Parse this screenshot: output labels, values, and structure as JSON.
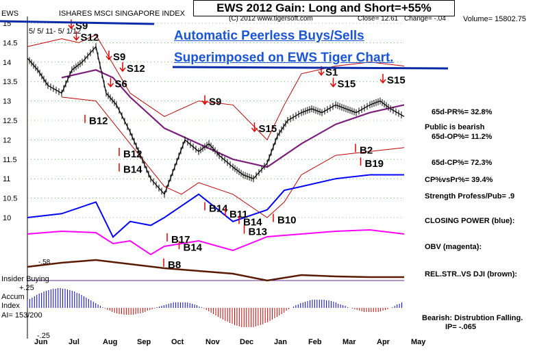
{
  "header": {
    "ticker": "EWS",
    "index_name": "ISHARES MSCI SINGAPORE INDEX",
    "title": "EWS 2012 Gain: Long and Short=+55%",
    "source": "(C) 2012 www.tigersoft.com",
    "close": "Close= 12.61",
    "change": "Change= -.04",
    "volume": "Volume= 15802.75",
    "date_range": "5/ 5/ 11- 5/ 1/12"
  },
  "banner": {
    "line1": "Automatic Peerless Buys/Sells",
    "line2": "Superimposed on EWS Tiger Chart."
  },
  "right_panel": {
    "pr": "65d-PR%= 32.8%",
    "sentiment": "Public is bearish",
    "op": "65d-OP%= 11.2%",
    "cp": "65d-CP%= 72.3%",
    "cpvspr": "CP%vsPr%=  39.4%",
    "strength": "Strength Profess/Pub= .9",
    "closing_power": "CLOSING POWER (blue):",
    "obv": "OBV (magenta):",
    "relstr": "REL.STR..VS DJI (brown):",
    "bearish": "Bearish: Distrubtion Falling.",
    "ip": "IP= -.065"
  },
  "accum_panel": {
    "insider": "Insider Buying",
    "plus": "+.25",
    "accum": "Accum",
    "index": "Index",
    "ai": "AI= 153/200",
    "minus": "-.25",
    "relstr_mark": "-.58"
  },
  "colors": {
    "price": "#000000",
    "bands": "#c00000",
    "ma": "#7a1f7a",
    "closing_power": "#0000ff",
    "obv": "#ff00ff",
    "relstr": "#5a1a00",
    "accum_pos": "#0000cc",
    "accum_neg": "#cc0000",
    "signal_text": "#000000",
    "arrows": "#e00000"
  },
  "chart_data": {
    "type": "line",
    "title": "EWS 2012 Gain: Long and Short=+55%",
    "xlabel": "",
    "ylabel": "",
    "ylim": [
      9.5,
      15
    ],
    "yticks": [
      10,
      10.5,
      11,
      11.5,
      12,
      12.5,
      13,
      13.5,
      14,
      14.5,
      15
    ],
    "xticks": [
      "Jun",
      "Jul",
      "Aug",
      "Sep",
      "Oct",
      "Nov",
      "Dec",
      "Jan",
      "Feb",
      "Mar",
      "Apr",
      "May"
    ],
    "series": [
      {
        "name": "price",
        "x": [
          0,
          0.3,
          0.6,
          1,
          1.3,
          1.6,
          2,
          2.3,
          2.6,
          3,
          3.3,
          3.6,
          4,
          4.3,
          4.6,
          5,
          5.3,
          5.6,
          6,
          6.3,
          6.6,
          7,
          7.3,
          7.6,
          8,
          8.3,
          8.6,
          9,
          9.3,
          9.6,
          10,
          10.3,
          10.6,
          11
        ],
        "values": [
          14.1,
          13.8,
          13.4,
          13.2,
          13.8,
          14.0,
          14.4,
          13.2,
          12.9,
          12.2,
          11.6,
          11.0,
          10.6,
          11.3,
          12.0,
          11.7,
          11.9,
          11.6,
          11.3,
          11.1,
          11.0,
          11.4,
          12.1,
          12.5,
          12.7,
          12.8,
          12.7,
          12.9,
          12.8,
          12.7,
          12.9,
          13.0,
          12.8,
          12.6
        ]
      },
      {
        "name": "moving average",
        "x": [
          1,
          2,
          2.5,
          3,
          4,
          5,
          6,
          7,
          8,
          9,
          10,
          11
        ],
        "values": [
          13.6,
          13.8,
          13.6,
          13.1,
          12.3,
          11.9,
          11.5,
          11.3,
          11.9,
          12.4,
          12.7,
          12.9
        ]
      },
      {
        "name": "upper band",
        "x": [
          0,
          1,
          1.5,
          2,
          2.6,
          3,
          4,
          5,
          6,
          7,
          7.5,
          8,
          9,
          10,
          11
        ],
        "values": [
          14.4,
          14.6,
          14.5,
          14.7,
          13.8,
          13.2,
          12.6,
          13.0,
          12.9,
          12.0,
          12.9,
          13.7,
          13.9,
          14.0,
          13.9
        ]
      },
      {
        "name": "lower band",
        "x": [
          1,
          2,
          3,
          4,
          4.5,
          5,
          6,
          7,
          7.5,
          8,
          9,
          10,
          11
        ],
        "values": [
          13.1,
          13.0,
          11.9,
          10.8,
          10.6,
          10.9,
          10.6,
          10.0,
          10.4,
          11.1,
          11.6,
          11.7,
          11.8
        ]
      },
      {
        "name": "closing power",
        "x": [
          0,
          1,
          2,
          2.5,
          3,
          3.6,
          4,
          5,
          6,
          7,
          7.5,
          8,
          9,
          10,
          11
        ],
        "values": [
          10.0,
          10.1,
          10.4,
          9.5,
          9.9,
          9.8,
          10.0,
          10.6,
          9.9,
          10.2,
          10.7,
          10.8,
          11.0,
          11.1,
          11.1
        ]
      }
    ],
    "signals": [
      {
        "label": "S9",
        "month": 1.4,
        "price": 14.85
      },
      {
        "label": "S12",
        "month": 1.55,
        "price": 14.55
      },
      {
        "label": "S9",
        "month": 2.5,
        "price": 14.05
      },
      {
        "label": "S12",
        "month": 2.9,
        "price": 13.75
      },
      {
        "label": "S6",
        "month": 2.55,
        "price": 13.35
      },
      {
        "label": "B12",
        "month": 1.8,
        "price": 12.4
      },
      {
        "label": "B12",
        "month": 2.8,
        "price": 11.55
      },
      {
        "label": "B14",
        "month": 2.8,
        "price": 11.15
      },
      {
        "label": "S9",
        "month": 5.3,
        "price": 12.9
      },
      {
        "label": "S15",
        "month": 6.75,
        "price": 12.2
      },
      {
        "label": "B14",
        "month": 5.3,
        "price": 10.15
      },
      {
        "label": "B11",
        "month": 5.9,
        "price": 10.0
      },
      {
        "label": "B14",
        "month": 6.3,
        "price": 9.8
      },
      {
        "label": "B13",
        "month": 6.45,
        "price": 9.55
      },
      {
        "label": "B10",
        "month": 7.3,
        "price": 9.85
      },
      {
        "label": "S1",
        "month": 8.7,
        "price": 13.65
      },
      {
        "label": "S15",
        "month": 9.05,
        "price": 13.35
      },
      {
        "label": "S15",
        "month": 10.5,
        "price": 13.45
      },
      {
        "label": "B2",
        "month": 9.7,
        "price": 11.65
      },
      {
        "label": "B19",
        "month": 9.85,
        "price": 11.3
      },
      {
        "label": "B17",
        "month": 4.2,
        "price": 9.35
      },
      {
        "label": "B14",
        "month": 4.55,
        "price": 9.15
      },
      {
        "label": "B8",
        "month": 4.1,
        "price": 8.7
      }
    ]
  }
}
